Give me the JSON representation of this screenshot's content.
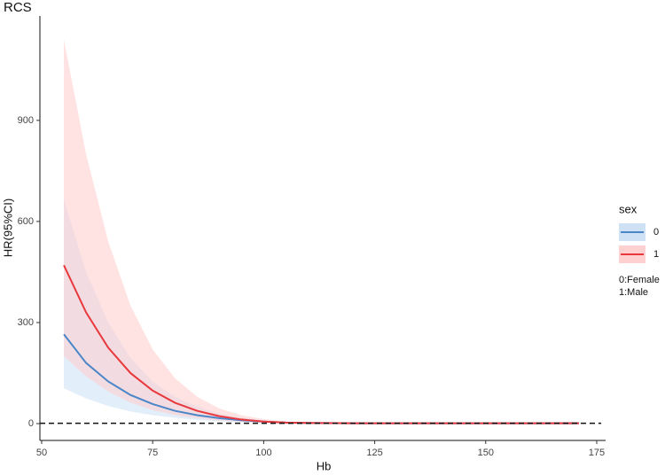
{
  "chart_data": {
    "type": "line",
    "title": "RCS",
    "xlabel": "Hb",
    "ylabel": "HR(95%CI)",
    "x": [
      55,
      60,
      65,
      70,
      75,
      80,
      85,
      90,
      95,
      100,
      105,
      110,
      120,
      130,
      140,
      150,
      160,
      171
    ],
    "series": [
      {
        "name": "0",
        "color": "#4a86c8",
        "band_color": "#cfe2f5",
        "values": [
          265,
          180,
          125,
          85,
          58,
          38,
          25,
          16,
          10,
          6,
          3,
          2,
          1,
          1,
          1,
          1,
          1,
          1
        ],
        "lower": [
          105,
          75,
          52,
          36,
          25,
          17,
          11,
          7,
          4,
          2.5,
          1.5,
          1,
          0.8,
          0.7,
          0.6,
          0.5,
          0.4,
          0.3
        ],
        "upper": [
          665,
          450,
          300,
          195,
          125,
          80,
          50,
          30,
          18,
          10,
          6,
          4,
          3,
          3,
          3,
          3,
          4,
          5
        ]
      },
      {
        "name": "1",
        "color": "#e8383d",
        "band_color": "#ffd0d0",
        "values": [
          470,
          330,
          225,
          150,
          98,
          62,
          38,
          22,
          12,
          6,
          3,
          2,
          1,
          1,
          1,
          1,
          1,
          1
        ],
        "lower": [
          200,
          140,
          95,
          62,
          40,
          25,
          16,
          9,
          5,
          3,
          1.5,
          1,
          0.8,
          0.7,
          0.6,
          0.5,
          0.4,
          0.3
        ],
        "upper": [
          1140,
          800,
          540,
          350,
          220,
          135,
          80,
          45,
          25,
          13,
          7,
          4,
          3,
          3,
          3,
          3,
          4,
          5
        ]
      }
    ],
    "reference_line": 1,
    "legend_title": "sex",
    "legend_note": [
      "0:Female",
      "1:Male"
    ],
    "xlim": [
      49.6,
      177
    ],
    "xticks": [
      50,
      75,
      100,
      125,
      150,
      175
    ],
    "ylim": [
      -50,
      1210
    ],
    "yticks": [
      0,
      300,
      600,
      900
    ],
    "grid": false
  }
}
